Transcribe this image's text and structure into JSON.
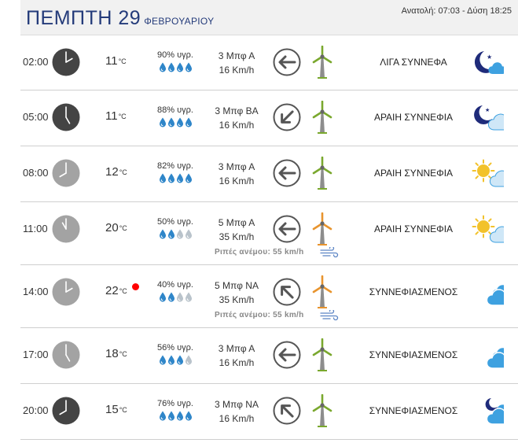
{
  "header": {
    "day": "ΠΕΜΠΤΗ 29",
    "month": "ΦΕΒΡΟΥΑΡΙΟΥ",
    "sun_times": "Ανατολή: 07:03  - Δύση 18:25"
  },
  "temp_unit": "°C",
  "rows": [
    {
      "time": "02:00",
      "clock_hour": 2,
      "clock_style": "dark",
      "temp": "11",
      "humidity": "90% υγρ.",
      "humidity_drops": 4,
      "wind_beaufort": "3 Μπφ Α",
      "wind_speed": "16 Km/h",
      "wind_direction": "E",
      "turbine_color": "green",
      "condition": "ΛΙΓΑ ΣΥΝΝΕΦΑ",
      "weather_icon": "moon-few-clouds-icon"
    },
    {
      "time": "05:00",
      "clock_hour": 5,
      "clock_style": "dark",
      "temp": "11",
      "humidity": "88% υγρ.",
      "humidity_drops": 4,
      "wind_beaufort": "3 Μπφ ΒΑ",
      "wind_speed": "16 Km/h",
      "wind_direction": "NE",
      "turbine_color": "green",
      "condition": "ΑΡΑΙΗ ΣΥΝΝΕΦΙΑ",
      "weather_icon": "moon-cloud-icon"
    },
    {
      "time": "08:00",
      "clock_hour": 8,
      "clock_style": "light",
      "temp": "12",
      "humidity": "82% υγρ.",
      "humidity_drops": 4,
      "wind_beaufort": "3 Μπφ Α",
      "wind_speed": "16 Km/h",
      "wind_direction": "E",
      "turbine_color": "green",
      "condition": "ΑΡΑΙΗ ΣΥΝΝΕΦΙΑ",
      "weather_icon": "sun-cloud-icon"
    },
    {
      "time": "11:00",
      "clock_hour": 11,
      "clock_style": "light",
      "temp": "20",
      "humidity": "50% υγρ.",
      "humidity_drops": 2,
      "wind_beaufort": "5 Μπφ Α",
      "wind_speed": "35 Km/h",
      "wind_direction": "E",
      "turbine_color": "orange",
      "condition": "ΑΡΑΙΗ ΣΥΝΝΕΦΙΑ",
      "weather_icon": "sun-cloud-icon",
      "gusts": "Ριπές ανέμου: 55 km/h"
    },
    {
      "time": "14:00",
      "clock_hour": 2,
      "clock_style": "light",
      "temp": "22",
      "red_dot": true,
      "humidity": "40% υγρ.",
      "humidity_drops": 2,
      "wind_beaufort": "5 Μπφ ΝΑ",
      "wind_speed": "35 Km/h",
      "wind_direction": "SE",
      "turbine_color": "orange",
      "condition": "ΣΥΝΝΕΦΙΑΣΜΕΝΟΣ",
      "weather_icon": "clouds-icon",
      "gusts": "Ριπές ανέμου: 55 km/h"
    },
    {
      "time": "17:00",
      "clock_hour": 5,
      "clock_style": "light",
      "temp": "18",
      "humidity": "56% υγρ.",
      "humidity_drops": 3,
      "wind_beaufort": "3 Μπφ Α",
      "wind_speed": "16 Km/h",
      "wind_direction": "E",
      "turbine_color": "green",
      "condition": "ΣΥΝΝΕΦΙΑΣΜΕΝΟΣ",
      "weather_icon": "clouds-icon"
    },
    {
      "time": "20:00",
      "clock_hour": 8,
      "clock_style": "dark",
      "temp": "15",
      "humidity": "76% υγρ.",
      "humidity_drops": 4,
      "wind_beaufort": "3 Μπφ ΝΑ",
      "wind_speed": "16 Km/h",
      "wind_direction": "SE",
      "turbine_color": "green",
      "condition": "ΣΥΝΝΕΦΙΑΣΜΕΝΟΣ",
      "weather_icon": "moon-clouds-icon"
    }
  ],
  "colors": {
    "title": "#243b7a",
    "drop_full": "#2f86c9",
    "drop_empty": "#b9c3cb",
    "clock_dark": "#444444",
    "clock_light": "#a3a3a3",
    "turbine_green": "#7aa82e",
    "turbine_orange": "#e8942e",
    "cloud_blue": "#3ea1e0",
    "sun": "#f2c22b",
    "moon": "#1f2b7a"
  }
}
